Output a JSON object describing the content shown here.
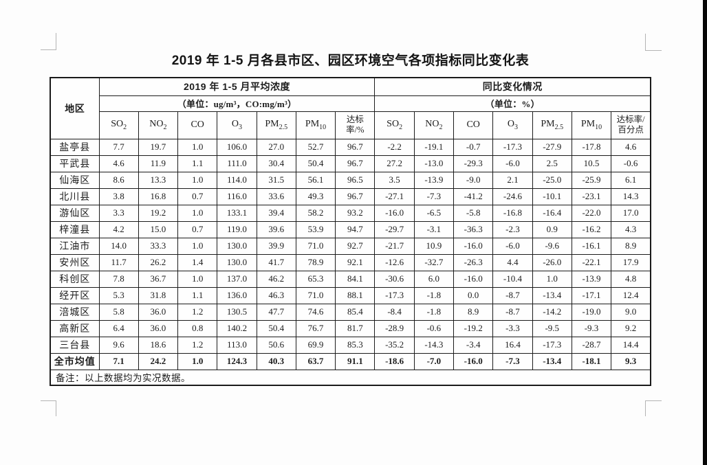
{
  "title": "2019 年 1-5 月各县市区、园区环境空气各项指标同比变化表",
  "table": {
    "region_header": "地区",
    "groups": [
      {
        "title": "2019 年 1-5 月平均浓度",
        "unit": "（单位：ug/m³，CO:mg/m³）"
      },
      {
        "title": "同比变化情况",
        "unit": "（单位：%）"
      }
    ],
    "pollutants": [
      {
        "base": "SO",
        "sub": "2"
      },
      {
        "base": "NO",
        "sub": "2"
      },
      {
        "base": "CO",
        "sub": ""
      },
      {
        "base": "O",
        "sub": "3"
      },
      {
        "base": "PM",
        "sub": "2.5"
      },
      {
        "base": "PM",
        "sub": "10"
      }
    ],
    "rate_header_left": [
      "达标",
      "率/%"
    ],
    "rate_header_right": [
      "达标率/",
      "百分点"
    ],
    "rows": [
      {
        "region": "盐亭县",
        "bold": false,
        "values": [
          "7.7",
          "19.7",
          "1.0",
          "106.0",
          "27.0",
          "52.7",
          "96.7",
          "-2.2",
          "-19.1",
          "-0.7",
          "-17.3",
          "-27.9",
          "-17.8",
          "4.6"
        ]
      },
      {
        "region": "平武县",
        "bold": false,
        "values": [
          "4.6",
          "11.9",
          "1.1",
          "111.0",
          "30.4",
          "50.4",
          "96.7",
          "27.2",
          "-13.0",
          "-29.3",
          "-6.0",
          "2.5",
          "10.5",
          "-0.6"
        ]
      },
      {
        "region": "仙海区",
        "bold": false,
        "values": [
          "8.6",
          "13.3",
          "1.0",
          "114.0",
          "31.5",
          "56.1",
          "96.5",
          "3.5",
          "-13.9",
          "-9.0",
          "2.1",
          "-25.0",
          "-25.9",
          "6.1"
        ]
      },
      {
        "region": "北川县",
        "bold": false,
        "values": [
          "3.8",
          "16.8",
          "0.7",
          "116.0",
          "33.6",
          "49.3",
          "96.7",
          "-27.1",
          "-7.3",
          "-41.2",
          "-24.6",
          "-10.1",
          "-23.1",
          "14.3"
        ]
      },
      {
        "region": "游仙区",
        "bold": false,
        "values": [
          "3.3",
          "19.2",
          "1.0",
          "133.1",
          "39.4",
          "58.2",
          "93.2",
          "-16.0",
          "-6.5",
          "-5.8",
          "-16.8",
          "-16.4",
          "-22.0",
          "17.0"
        ]
      },
      {
        "region": "梓潼县",
        "bold": false,
        "values": [
          "4.2",
          "15.0",
          "0.7",
          "119.0",
          "39.6",
          "53.9",
          "94.7",
          "-29.7",
          "-3.1",
          "-36.3",
          "-2.3",
          "0.9",
          "-16.2",
          "4.3"
        ]
      },
      {
        "region": "江油市",
        "bold": false,
        "values": [
          "14.0",
          "33.3",
          "1.0",
          "130.0",
          "39.9",
          "71.0",
          "92.7",
          "-21.7",
          "10.9",
          "-16.0",
          "-6.0",
          "-9.6",
          "-16.1",
          "8.9"
        ]
      },
      {
        "region": "安州区",
        "bold": false,
        "values": [
          "11.7",
          "26.2",
          "1.4",
          "130.0",
          "41.7",
          "78.9",
          "92.1",
          "-12.6",
          "-32.7",
          "-26.3",
          "4.4",
          "-26.0",
          "-22.1",
          "17.9"
        ]
      },
      {
        "region": "科创区",
        "bold": false,
        "values": [
          "7.8",
          "36.7",
          "1.0",
          "137.0",
          "46.2",
          "65.3",
          "84.1",
          "-30.6",
          "6.0",
          "-16.0",
          "-10.4",
          "1.0",
          "-13.9",
          "4.8"
        ]
      },
      {
        "region": "经开区",
        "bold": false,
        "values": [
          "5.3",
          "31.8",
          "1.1",
          "136.0",
          "46.3",
          "71.0",
          "88.1",
          "-17.3",
          "-1.8",
          "0.0",
          "-8.7",
          "-13.4",
          "-17.1",
          "12.4"
        ]
      },
      {
        "region": "涪城区",
        "bold": false,
        "values": [
          "5.8",
          "36.0",
          "1.2",
          "130.5",
          "47.7",
          "74.6",
          "85.4",
          "-8.4",
          "-1.8",
          "8.9",
          "-8.7",
          "-14.2",
          "-19.0",
          "9.0"
        ]
      },
      {
        "region": "高新区",
        "bold": false,
        "values": [
          "6.4",
          "36.0",
          "0.8",
          "140.2",
          "50.4",
          "76.7",
          "81.7",
          "-28.9",
          "-0.6",
          "-19.2",
          "-3.3",
          "-9.5",
          "-9.3",
          "9.2"
        ]
      },
      {
        "region": "三台县",
        "bold": false,
        "values": [
          "9.6",
          "18.6",
          "1.2",
          "113.0",
          "50.6",
          "69.9",
          "85.3",
          "-35.2",
          "-14.3",
          "-3.4",
          "16.4",
          "-17.3",
          "-28.7",
          "14.4"
        ]
      },
      {
        "region": "全市均值",
        "bold": true,
        "values": [
          "7.1",
          "24.2",
          "1.0",
          "124.3",
          "40.3",
          "63.7",
          "91.1",
          "-18.6",
          "-7.0",
          "-16.0",
          "-7.3",
          "-13.4",
          "-18.1",
          "9.3"
        ]
      }
    ],
    "note": "备注：以上数据均为实况数据。"
  }
}
